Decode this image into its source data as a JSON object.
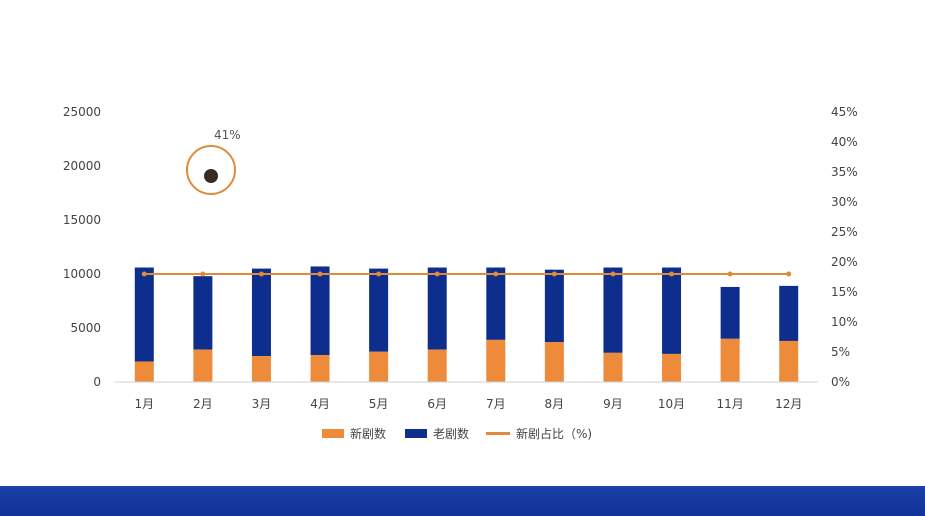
{
  "chart_data": {
    "type": "bar",
    "stacked": true,
    "categories": [
      "1月",
      "2月",
      "3月",
      "4月",
      "5月",
      "6月",
      "7月",
      "8月",
      "9月",
      "10月",
      "11月",
      "12月"
    ],
    "series": [
      {
        "name": "新剧数",
        "kind": "bar",
        "axis": "left",
        "color": "#ed8b3a",
        "values": [
          1900,
          3000,
          2400,
          2500,
          2800,
          3000,
          3900,
          3700,
          2700,
          2600,
          4000,
          3800
        ]
      },
      {
        "name": "老剧数",
        "kind": "bar",
        "axis": "left",
        "color": "#0d2e8c",
        "values": [
          8700,
          6800,
          8100,
          8200,
          7700,
          7600,
          6700,
          6700,
          7900,
          8000,
          4800,
          5100
        ]
      },
      {
        "name": "新剧占比（%)",
        "kind": "line",
        "axis": "right",
        "color": "#e08a3c",
        "values": [
          18,
          18,
          18,
          18,
          18,
          18,
          18,
          18,
          18,
          18,
          18,
          18
        ]
      }
    ],
    "y_left": {
      "min": 0,
      "max": 25000,
      "ticks": [
        "0",
        "5000",
        "10000",
        "15000",
        "20000",
        "25000"
      ],
      "tick_values": [
        0,
        5000,
        10000,
        15000,
        20000,
        25000
      ]
    },
    "y_right": {
      "min": 0,
      "max": 45,
      "ticks": [
        "0%",
        "5%",
        "10%",
        "15%",
        "20%",
        "25%",
        "30%",
        "35%",
        "40%",
        "45%"
      ],
      "tick_values": [
        0,
        5,
        10,
        15,
        20,
        25,
        30,
        35,
        40,
        45
      ]
    },
    "annotation": "41%",
    "legend_position": "bottom",
    "grid": false
  },
  "colors": {
    "new": "#ed8b3a",
    "old": "#0d2e8c",
    "line": "#e08a3c",
    "band": "#1a3fa8"
  }
}
